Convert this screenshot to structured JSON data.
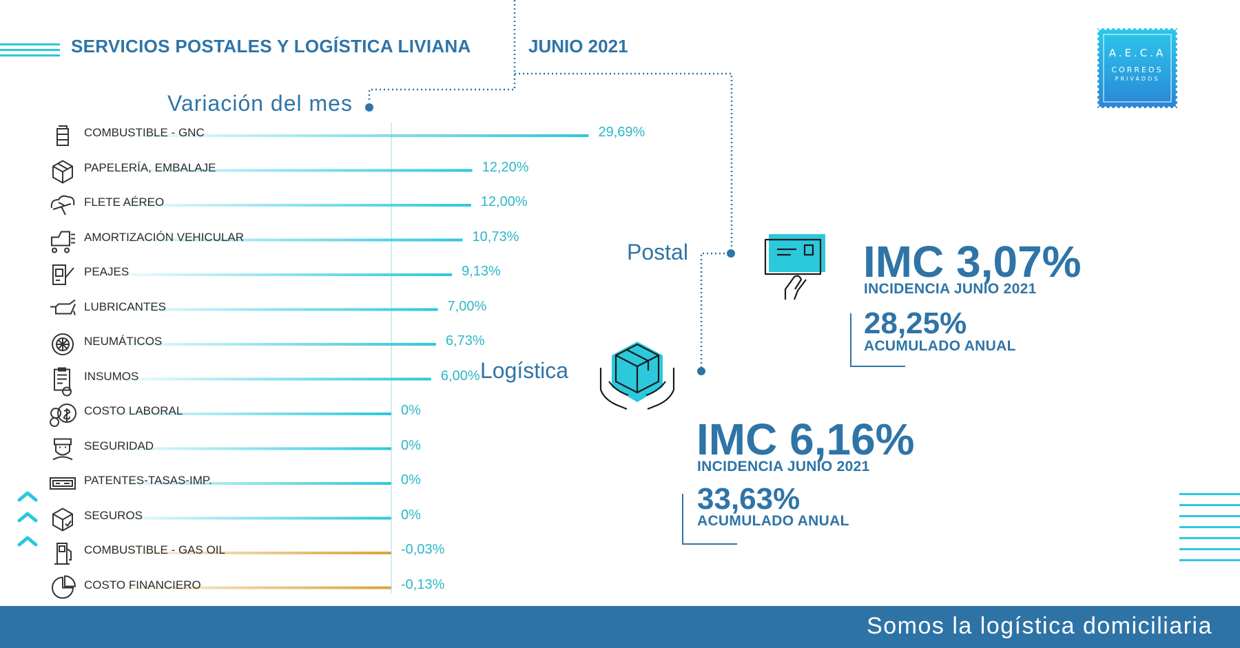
{
  "header": {
    "title": "SERVICIOS POSTALES Y LOGÍSTICA LIVIANA",
    "date": "JUNIO 2021"
  },
  "logo": {
    "line1": "A.E.C.A",
    "line2": "CORREOS",
    "line3": "PRIVADOS"
  },
  "section_title": "Variación del mes",
  "labels": {
    "postal": "Postal",
    "logistica": "Logística"
  },
  "postal": {
    "imc": "IMC 3,07%",
    "incidencia": "INCIDENCIA JUNIO 2021",
    "acumulado": "28,25%",
    "acumulado_label": "ACUMULADO ANUAL"
  },
  "logistica": {
    "imc": "IMC 6,16%",
    "incidencia": "INCIDENCIA JUNIO 2021",
    "acumulado": "33,63%",
    "acumulado_label": "ACUMULADO ANUAL"
  },
  "footer": {
    "tagline": "Somos la logística domiciliaria"
  },
  "colors": {
    "primary": "#2e74a7",
    "accent": "#2cc8dc",
    "negative": "#d9a33a"
  },
  "chart_data": {
    "type": "bar",
    "orientation": "horizontal",
    "title": "Variación del mes",
    "categories": [
      "COMBUSTIBLE - GNC",
      "PAPELERÍA, EMBALAJE",
      "FLETE AÉREO",
      "AMORTIZACIÓN VEHICULAR",
      "PEAJES",
      "LUBRICANTES",
      "NEUMÁTICOS",
      "INSUMOS",
      "COSTO LABORAL",
      "SEGURIDAD",
      "PATENTES-TASAS-IMP.",
      "SEGUROS",
      "COMBUSTIBLE - GAS OIL",
      "COSTO FINANCIERO"
    ],
    "values": [
      29.69,
      12.2,
      12.0,
      10.73,
      9.13,
      7.0,
      6.73,
      6.0,
      0,
      0,
      0,
      0,
      -0.03,
      -0.13
    ],
    "value_labels": [
      "29,69%",
      "12,20%",
      "12,00%",
      "10,73%",
      "9,13%",
      "7,00%",
      "6,73%",
      "6,00%",
      "0%",
      "0%",
      "0%",
      "0%",
      "-0,03%",
      "-0,13%"
    ],
    "icons": [
      "gas-cylinder-icon",
      "box-icon",
      "cloud-plane-icon",
      "truck-icon",
      "toll-booth-icon",
      "oil-can-icon",
      "tire-icon",
      "clipboard-icon",
      "coins-icon",
      "security-guard-icon",
      "ticket-icon",
      "shield-box-icon",
      "fuel-pump-icon",
      "pie-icon"
    ]
  }
}
